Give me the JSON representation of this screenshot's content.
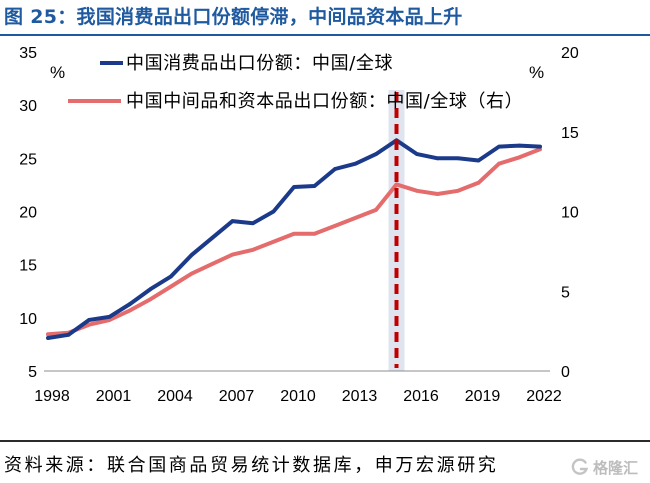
{
  "title": "图 25：我国消费品出口份额停滞，中间品资本品上升",
  "source": "资料来源：联合国商品贸易统计数据库，申万宏源研究",
  "watermark": "格隆汇",
  "colors": {
    "title": "#1f5aa0",
    "consumer_series": "#1b3a8a",
    "intermediate_series": "#e46c6c",
    "annotation_line": "#c00000",
    "annotation_band": "#dfe4ef",
    "axis": "#8c8c8c"
  },
  "chart_data": {
    "type": "line",
    "x": [
      1998,
      1999,
      2000,
      2001,
      2002,
      2003,
      2004,
      2005,
      2006,
      2007,
      2008,
      2009,
      2010,
      2011,
      2012,
      2013,
      2014,
      2015,
      2016,
      2017,
      2018,
      2019,
      2020,
      2021,
      2022
    ],
    "x_ticks": [
      1998,
      2001,
      2004,
      2007,
      2010,
      2013,
      2016,
      2019,
      2022
    ],
    "y_left": {
      "unit": "%",
      "range": [
        5,
        35
      ],
      "ticks": [
        5,
        10,
        15,
        20,
        25,
        30,
        35
      ]
    },
    "y_right": {
      "unit": "%",
      "range": [
        0,
        20
      ],
      "ticks": [
        0,
        5,
        10,
        15,
        20
      ]
    },
    "series": [
      {
        "name": "中国中间品和资本品出口份额：中国/全球（右）",
        "axis": "right",
        "values": [
          2.3,
          2.4,
          2.9,
          3.2,
          3.8,
          4.5,
          5.3,
          6.1,
          6.7,
          7.3,
          7.6,
          8.1,
          8.6,
          8.6,
          9.1,
          9.6,
          10.1,
          11.7,
          11.3,
          11.1,
          11.3,
          11.8,
          13.0,
          13.4,
          13.9
        ]
      },
      {
        "name": "中国消费品出口份额：中国/全球",
        "axis": "left",
        "values": [
          8.1,
          8.4,
          9.8,
          10.1,
          11.3,
          12.7,
          13.9,
          15.9,
          17.5,
          19.1,
          18.9,
          20.0,
          22.3,
          22.4,
          24.0,
          24.5,
          25.4,
          26.7,
          25.4,
          25.0,
          25.0,
          24.8,
          26.1,
          26.2,
          26.1
        ]
      }
    ],
    "annotation": {
      "type": "vertical-dashed-line",
      "x": 2015
    },
    "grid": false,
    "legend": "top-left"
  }
}
